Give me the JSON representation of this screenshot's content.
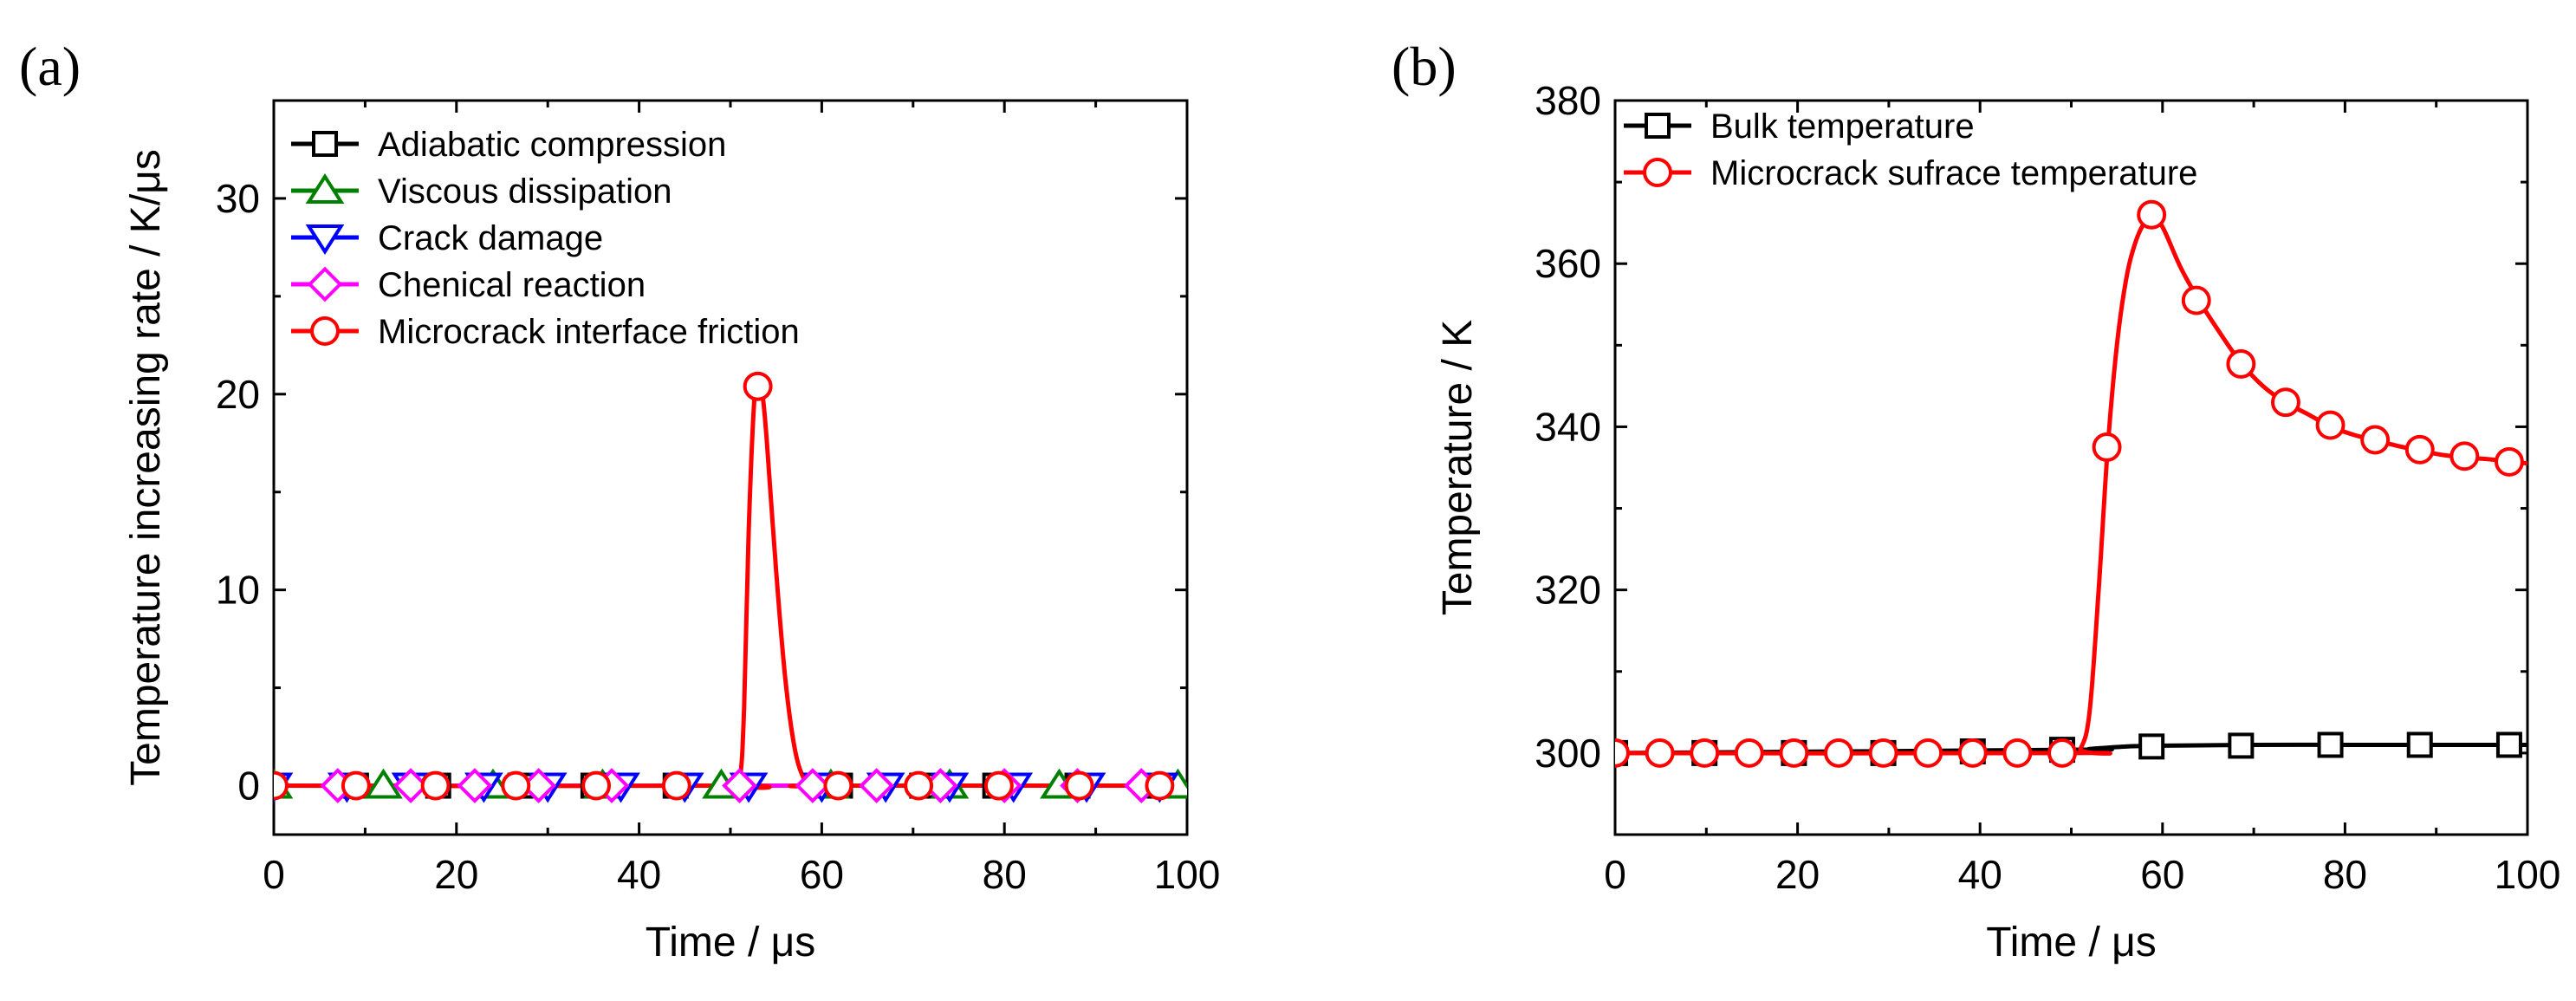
{
  "chart_data": [
    {
      "panel_label": "(a)",
      "type": "line",
      "xlabel": "Time / μs",
      "ylabel": "Temperature increasing rate / K/μs",
      "xlim": [
        0,
        100
      ],
      "ylim": [
        -2.5,
        35
      ],
      "xticks": [
        0,
        20,
        40,
        60,
        80,
        100
      ],
      "xtick_labels": [
        "0",
        "20",
        "40",
        "60",
        "80",
        "100"
      ],
      "yticks": [
        0,
        10,
        20,
        30
      ],
      "ytick_labels": [
        "0",
        "10",
        "20",
        "30"
      ],
      "legend_position": "top-left",
      "series": [
        {
          "name": "Adiabatic compression",
          "color": "#000000",
          "marker": "square",
          "x": [
            0,
            100
          ],
          "y": [
            0,
            0
          ],
          "marker_x": [
            0,
            9,
            18,
            27,
            35,
            44,
            62,
            71,
            79,
            88,
            97
          ],
          "marker_y": [
            0,
            0,
            0,
            0,
            0,
            0,
            0,
            0,
            0,
            0,
            0
          ]
        },
        {
          "name": "Viscous dissipation",
          "color": "#008000",
          "marker": "triangle-up",
          "x": [
            0,
            100
          ],
          "y": [
            0,
            0
          ],
          "marker_x": [
            0,
            12,
            24,
            36,
            49,
            61,
            74,
            86,
            99
          ],
          "marker_y": [
            0,
            0,
            0,
            0,
            0,
            0,
            0,
            0,
            0
          ]
        },
        {
          "name": "Crack damage",
          "color": "#0000ff",
          "marker": "triangle-down",
          "x": [
            0,
            100
          ],
          "y": [
            0,
            0
          ],
          "marker_x": [
            0,
            8,
            15,
            23,
            30,
            38,
            45,
            52,
            60,
            67,
            74,
            81,
            89,
            97
          ],
          "marker_y": [
            0,
            0,
            0,
            0,
            0,
            0,
            0,
            0,
            0,
            0,
            0,
            0,
            0,
            0
          ]
        },
        {
          "name": "Chenical reaction",
          "color": "#ff00ff",
          "marker": "diamond",
          "x": [
            0,
            100
          ],
          "y": [
            0,
            0
          ],
          "marker_x": [
            7,
            15,
            22,
            29,
            37,
            51,
            59,
            66,
            73,
            80,
            88,
            95
          ],
          "marker_y": [
            0,
            0,
            0,
            0,
            0,
            0,
            0,
            0,
            0,
            0,
            0,
            0
          ]
        },
        {
          "name": "Microcrack interface friction",
          "color": "#ff0000",
          "marker": "circle",
          "x": [
            0,
            50,
            51,
            51.5,
            52,
            52.6,
            53,
            53.5,
            54,
            55,
            56,
            57,
            58,
            59,
            60,
            100
          ],
          "y": [
            0,
            0,
            0.3,
            4,
            13,
            19.6,
            20.4,
            20,
            17.5,
            11,
            5.5,
            2,
            0.4,
            0,
            0,
            0
          ],
          "marker_x": [
            0,
            9,
            17.7,
            26.5,
            35.3,
            44.1,
            53,
            61.8,
            70.6,
            79.4,
            88.2,
            97
          ],
          "marker_y": [
            0,
            0,
            0,
            0,
            0,
            0,
            20.4,
            0,
            0,
            0,
            0,
            0
          ]
        }
      ]
    },
    {
      "panel_label": "(b)",
      "type": "line",
      "xlabel": "Time / μs",
      "ylabel": "Temperature / K",
      "xlim": [
        0,
        100
      ],
      "ylim": [
        290,
        380
      ],
      "xticks": [
        0,
        20,
        40,
        60,
        80,
        100
      ],
      "xtick_labels": [
        "0",
        "20",
        "40",
        "60",
        "80",
        "100"
      ],
      "yticks": [
        300,
        320,
        340,
        360,
        380
      ],
      "ytick_labels": [
        "300",
        "320",
        "340",
        "360",
        "380"
      ],
      "legend_position": "top-left",
      "series": [
        {
          "name": "Bulk temperature",
          "color": "#000000",
          "marker": "square",
          "x": [
            0,
            50,
            52,
            56,
            60,
            70,
            80,
            90,
            100
          ],
          "y": [
            300,
            300.4,
            300.5,
            300.8,
            300.9,
            301,
            301,
            301,
            301
          ],
          "marker_x": [
            0,
            9.8,
            19.6,
            29.4,
            39.2,
            49,
            58.8,
            68.6,
            78.4,
            88.2,
            98
          ],
          "marker_y": [
            300,
            300,
            300,
            300,
            300.2,
            300.4,
            300.8,
            300.9,
            301,
            301,
            301
          ]
        },
        {
          "name": "Microcrack sufrace temperature",
          "color": "#ff0000",
          "marker": "circle",
          "x": [
            0,
            50,
            51,
            52,
            53,
            54,
            55,
            56,
            57,
            58,
            58.8,
            60,
            62,
            64,
            66,
            68.5,
            71,
            73.5,
            76,
            78.5,
            81,
            83.5,
            86,
            88.5,
            91,
            93.5,
            96,
            98.5,
            100
          ],
          "y": [
            300,
            300,
            300.5,
            305,
            320,
            337.5,
            350,
            358,
            362.5,
            365,
            366,
            364.5,
            359.5,
            355.5,
            352,
            348,
            345,
            343,
            341.5,
            340,
            339,
            338.3,
            337.6,
            337,
            336.5,
            336.2,
            336,
            335.7,
            335.5
          ],
          "marker_x": [
            0,
            4.9,
            9.8,
            14.7,
            19.6,
            24.5,
            29.4,
            34.3,
            39.2,
            44.1,
            49,
            53.9,
            58.8,
            63.7,
            68.6,
            73.5,
            78.4,
            83.3,
            88.2,
            93.1,
            98
          ],
          "marker_y": [
            300,
            300,
            300,
            300,
            300,
            300,
            300,
            300,
            300,
            300,
            300,
            337.5,
            366,
            355.5,
            347.7,
            343,
            340.2,
            338.4,
            337.2,
            336.4,
            335.7
          ]
        }
      ]
    }
  ]
}
